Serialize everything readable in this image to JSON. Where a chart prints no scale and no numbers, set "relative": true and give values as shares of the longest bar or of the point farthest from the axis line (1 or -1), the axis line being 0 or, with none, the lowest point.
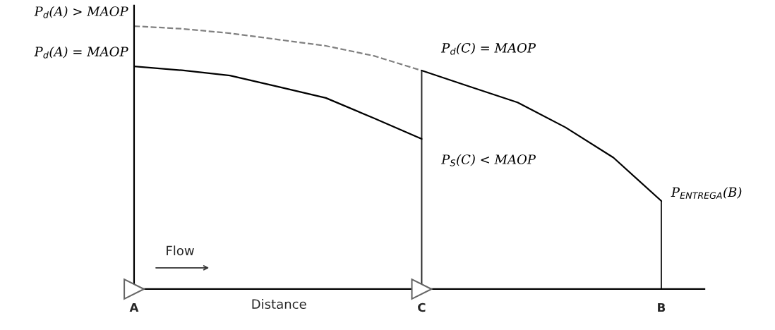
{
  "chart_data": {
    "type": "line",
    "relative": true,
    "xlabel": "Distance",
    "legend": false,
    "grid": false,
    "marker": "none",
    "line_style": "solid",
    "categories": [
      "A",
      null,
      null,
      null,
      null,
      null,
      "C",
      null,
      null,
      null,
      null,
      "B"
    ],
    "series": [
      {
        "color": "#000000",
        "values": [
          0.847,
          0.832,
          0.812,
          0.77,
          0.727,
          0.65,
          0.571,
          null,
          null,
          null,
          null,
          null
        ]
      },
      {
        "color": "#808080",
        "line_style": "dashed",
        "values": [
          1,
          0.99,
          0.973,
          0.949,
          0.925,
          0.887,
          0.831,
          null,
          null,
          null,
          null,
          null
        ]
      },
      {
        "color": "#000000",
        "values": [
          null,
          null,
          null,
          null,
          null,
          null,
          0.831,
          0.77,
          0.71,
          0.615,
          0.5,
          0.335
        ]
      },
      {
        "type": "bar",
        "color": "#2b2b2b",
        "values": [
          null,
          null,
          null,
          null,
          null,
          null,
          0.831,
          null,
          null,
          null,
          null,
          0.335
        ]
      }
    ],
    "annotations": [
      {
        "text": "P$_{d}$(A) > MAOP",
        "x": "A",
        "y": 1
      },
      {
        "text": "P$_{d}$(A) = MAOP",
        "x": "A",
        "y": 0.847
      },
      {
        "text": "P$_{d}$(C) = MAOP",
        "x": "C",
        "y": 0.831
      },
      {
        "text": "P$_{S}$(C) < MAOP",
        "x": "C",
        "y": 0.571
      },
      {
        "text": "P$_{ENTREGA}$(B)",
        "x": "B",
        "y": 0.335
      },
      "Flow"
    ]
  }
}
